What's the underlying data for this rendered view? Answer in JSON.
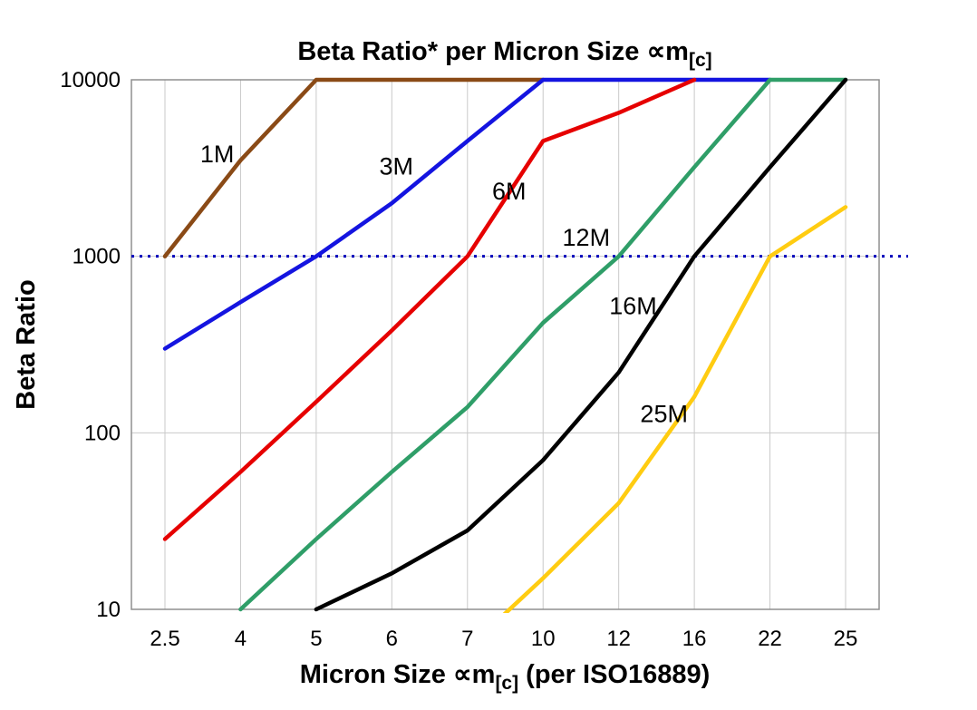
{
  "chart_data": {
    "type": "line",
    "title": {
      "pre": "Beta Ratio* per Micron Size ∝m",
      "sub": "[c]",
      "post": ""
    },
    "xlabel": {
      "pre": "Micron Size ∝m",
      "sub": "[c]",
      "post": " (per ISO16889)"
    },
    "ylabel": "Beta Ratio",
    "x_categories": [
      "2.5",
      "4",
      "5",
      "6",
      "7",
      "10",
      "12",
      "16",
      "22",
      "25"
    ],
    "y_scale": "log",
    "ylim": [
      10,
      10000
    ],
    "y_ticks": [
      {
        "value": 10,
        "label": "10"
      },
      {
        "value": 100,
        "label": "100"
      },
      {
        "value": 1000,
        "label": "1000"
      },
      {
        "value": 10000,
        "label": "10000"
      }
    ],
    "grid": true,
    "legend_position": "inline-labels",
    "reference_line": {
      "value": 1000,
      "color": "#0000bb",
      "style": "dotted"
    },
    "colors": {
      "grid": "#c9c9c9",
      "border": "#8f8f8f",
      "background": "#ffffff"
    },
    "series": [
      {
        "name": "1M",
        "color": "#8a4a16",
        "values": [
          1000,
          3500,
          10000,
          10000,
          10000,
          10000,
          null,
          null,
          null,
          null
        ]
      },
      {
        "name": "3M",
        "color": "#1414e0",
        "values": [
          300,
          550,
          1000,
          2000,
          4500,
          10000,
          10000,
          10000,
          10000,
          null
        ]
      },
      {
        "name": "6M",
        "color": "#e60000",
        "values": [
          25,
          60,
          150,
          380,
          1000,
          4500,
          6500,
          10000,
          null,
          null
        ]
      },
      {
        "name": "12M",
        "color": "#2f9e68",
        "values": [
          null,
          10,
          25,
          60,
          140,
          420,
          1000,
          3200,
          10000,
          10000
        ]
      },
      {
        "name": "16M",
        "color": "#000000",
        "values": [
          null,
          null,
          10,
          16,
          28,
          70,
          220,
          1000,
          3200,
          10000
        ]
      },
      {
        "name": "25M",
        "color": "#ffcc11",
        "values": [
          null,
          null,
          null,
          null,
          6,
          15,
          40,
          160,
          1000,
          1900
        ]
      }
    ],
    "series_labels": [
      {
        "text": "1M",
        "color": "#8a4a16",
        "xi": 0.69,
        "value": 3400
      },
      {
        "text": "3M",
        "color": "#1414e0",
        "xi": 3.06,
        "value": 2900
      },
      {
        "text": "6M",
        "color": "#e60000",
        "xi": 4.55,
        "value": 2100
      },
      {
        "text": "12M",
        "color": "#2f9e68",
        "xi": 5.57,
        "value": 1150
      },
      {
        "text": "16M",
        "color": "#000000",
        "xi": 6.19,
        "value": 470
      },
      {
        "text": "25M",
        "color": "#ffcc11",
        "xi": 6.6,
        "value": 115
      }
    ]
  }
}
